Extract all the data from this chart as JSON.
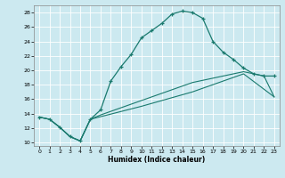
{
  "xlabel": "Humidex (Indice chaleur)",
  "background_color": "#cce9f0",
  "line_color": "#1a7a6e",
  "xlim": [
    -0.5,
    23.5
  ],
  "ylim": [
    9.5,
    29
  ],
  "yticks": [
    10,
    12,
    14,
    16,
    18,
    20,
    22,
    24,
    26,
    28
  ],
  "xticks": [
    0,
    1,
    2,
    3,
    4,
    5,
    6,
    7,
    8,
    9,
    10,
    11,
    12,
    13,
    14,
    15,
    16,
    17,
    18,
    19,
    20,
    21,
    22,
    23
  ],
  "curve1_x": [
    0,
    1,
    2,
    3,
    4,
    5,
    6,
    7,
    8,
    9,
    10,
    11,
    12,
    13,
    14,
    15,
    16,
    17,
    18,
    19,
    20,
    21,
    22,
    23
  ],
  "curve1_y": [
    13.5,
    13.2,
    12.1,
    10.8,
    10.2,
    13.2,
    14.5,
    18.5,
    20.5,
    22.2,
    24.5,
    25.5,
    26.5,
    27.8,
    28.2,
    28.0,
    27.2,
    24.0,
    22.5,
    21.5,
    20.3,
    19.5,
    19.2,
    19.2
  ],
  "curve2_x": [
    0,
    1,
    2,
    3,
    4,
    5,
    6,
    7,
    8,
    9,
    10,
    11,
    12,
    13,
    14,
    15,
    16,
    17,
    18,
    19,
    20,
    21,
    22,
    23
  ],
  "curve2_y": [
    13.5,
    13.2,
    12.1,
    10.8,
    10.2,
    13.2,
    13.8,
    14.3,
    14.8,
    15.3,
    15.8,
    16.3,
    16.8,
    17.3,
    17.8,
    18.3,
    18.6,
    18.9,
    19.2,
    19.5,
    19.8,
    19.5,
    19.2,
    16.3
  ],
  "curve3_x": [
    0,
    1,
    2,
    3,
    4,
    5,
    10,
    15,
    20,
    23
  ],
  "curve3_y": [
    13.5,
    13.2,
    12.1,
    10.8,
    10.2,
    13.2,
    15.0,
    17.0,
    19.5,
    16.3
  ]
}
